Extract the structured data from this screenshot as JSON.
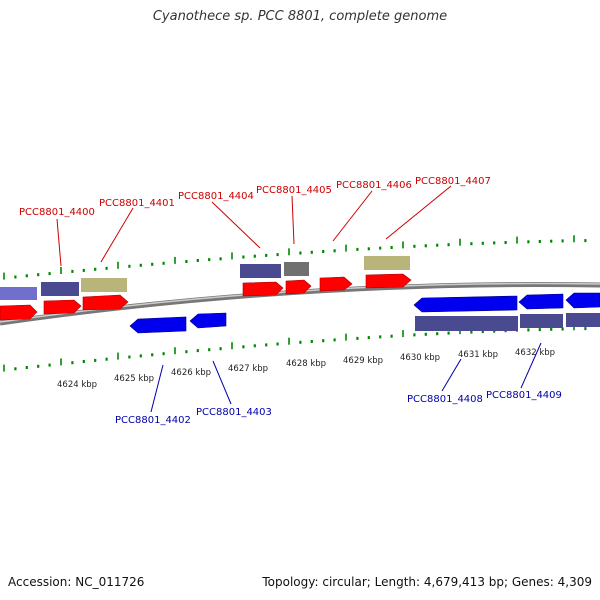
{
  "header": {
    "title": "Cyanothece sp. PCC 8801, complete genome"
  },
  "footer": {
    "accession": "Accession: NC_011726",
    "topology": "Topology: circular; Length: 4,679,413 bp; Genes: 4,309"
  },
  "scale": {
    "unit_labels": [
      "4624 kbp",
      "4625 kbp",
      "4626 kbp",
      "4627 kbp",
      "4628 kbp",
      "4629 kbp",
      "4630 kbp",
      "4631 kbp",
      "4632 kbp"
    ]
  },
  "labels_forward": [
    "PCC8801_4400",
    "PCC8801_4401",
    "PCC8801_4404",
    "PCC8801_4405",
    "PCC8801_4406",
    "PCC8801_4407"
  ],
  "labels_reverse": [
    "PCC8801_4402",
    "PCC8801_4403",
    "PCC8801_4408",
    "PCC8801_4409"
  ],
  "colors": {
    "forward_label": "#cc0000",
    "reverse_label": "#0000aa",
    "forward_gene": "#ff0000",
    "reverse_gene": "#0000ee",
    "cog_purple": "#4a4a90",
    "cog_khaki": "#b8b47a",
    "cog_gray": "#707070",
    "cog_lavender": "#7070cc",
    "backbone": "#888888",
    "tick": "#008800"
  }
}
